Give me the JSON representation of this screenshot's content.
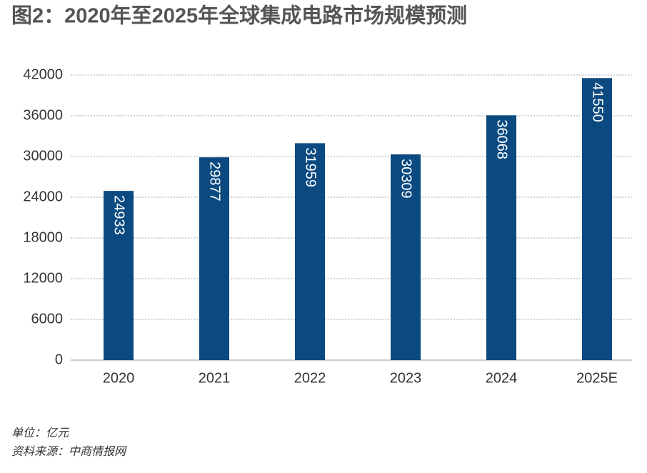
{
  "chart_data": {
    "type": "bar",
    "title": "图2：2020年至2025年全球集成电路市场规模预测",
    "categories": [
      "2020",
      "2021",
      "2022",
      "2023",
      "2024",
      "2025E"
    ],
    "values": [
      24933,
      29877,
      31959,
      30309,
      36068,
      41550
    ],
    "color": "#0b4a80",
    "ylim": [
      0,
      42000
    ],
    "yticks": [
      0,
      6000,
      12000,
      18000,
      24000,
      30000,
      36000,
      42000
    ],
    "grid": true,
    "notes": [
      "单位：亿元",
      "资料来源：中商情报网"
    ]
  }
}
